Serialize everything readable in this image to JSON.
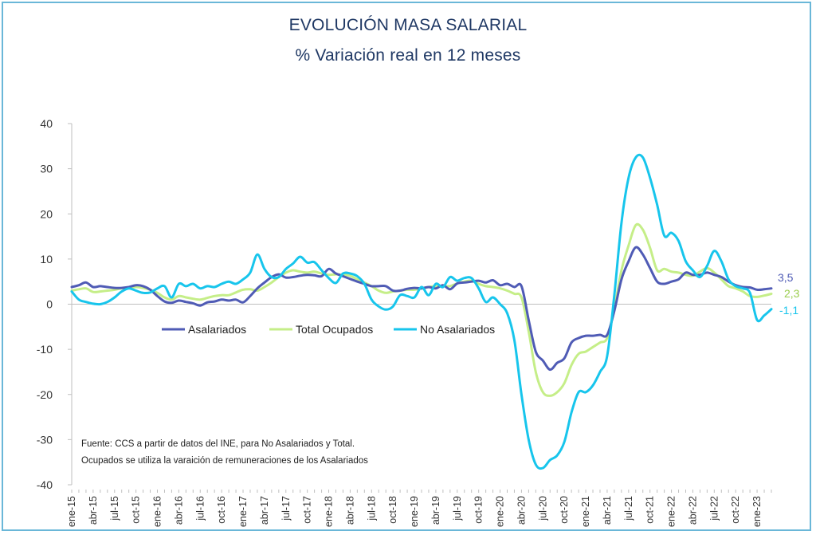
{
  "title": "EVOLUCIÓN MASA SALARIAL",
  "subtitle": "% Variación real en 12 meses",
  "note_lines": [
    "Fuente: CCS a partir de datos del INE, para No Asalariados y Total.",
    "Ocupados se utiliza la varaición de remuneraciones de los Asalariados"
  ],
  "chart_data": {
    "type": "line",
    "title": "EVOLUCIÓN MASA SALARIAL",
    "subtitle": "% Variación real en 12 meses",
    "ylim": [
      -40,
      40
    ],
    "yticks": [
      40,
      30,
      20,
      10,
      0,
      -10,
      -20,
      -30,
      -40
    ],
    "grid": false,
    "legend_position": "inside-upper-left, below zero line",
    "x_ticks": [
      "ene-15",
      "abr-15",
      "jul-15",
      "oct-15",
      "ene-16",
      "abr-16",
      "jul-16",
      "oct-16",
      "ene-17",
      "abr-17",
      "jul-17",
      "oct-17",
      "ene-18",
      "abr-18",
      "jul-18",
      "oct-18",
      "ene-19",
      "abr-19",
      "jul-19",
      "oct-19",
      "ene-20",
      "abr-20",
      "jul-20",
      "oct-20",
      "ene-21",
      "abr-21",
      "jul-21",
      "oct-21",
      "ene-22",
      "abr-22",
      "jul-22",
      "oct-22",
      "ene-23"
    ],
    "end_labels": [
      "3,5",
      "2,3",
      "-1,1"
    ],
    "series": [
      {
        "name": "Asalariados",
        "color": "#4f5bb5",
        "end_label": "3,5",
        "values": [
          [
            0,
            3.8
          ],
          [
            1,
            4.2
          ],
          [
            2,
            4.8
          ],
          [
            3,
            3.8
          ],
          [
            4,
            4.0
          ],
          [
            5,
            3.8
          ],
          [
            6,
            3.6
          ],
          [
            7,
            3.6
          ],
          [
            8,
            3.8
          ],
          [
            9,
            4.2
          ],
          [
            10,
            4.0
          ],
          [
            11,
            3.2
          ],
          [
            12,
            1.8
          ],
          [
            13,
            0.6
          ],
          [
            14,
            0.3
          ],
          [
            15,
            0.8
          ],
          [
            16,
            0.5
          ],
          [
            17,
            0.2
          ],
          [
            18,
            -0.3
          ],
          [
            19,
            0.4
          ],
          [
            20,
            0.6
          ],
          [
            21,
            1.0
          ],
          [
            22,
            0.8
          ],
          [
            23,
            1.0
          ],
          [
            24,
            0.4
          ],
          [
            25,
            1.8
          ],
          [
            26,
            3.5
          ],
          [
            27,
            4.8
          ],
          [
            28,
            6.0
          ],
          [
            29,
            6.6
          ],
          [
            30,
            5.9
          ],
          [
            31,
            6.0
          ],
          [
            32,
            6.3
          ],
          [
            33,
            6.5
          ],
          [
            34,
            6.4
          ],
          [
            35,
            6.2
          ],
          [
            36,
            7.8
          ],
          [
            37,
            6.8
          ],
          [
            38,
            6.2
          ],
          [
            39,
            5.6
          ],
          [
            40,
            5.0
          ],
          [
            41,
            4.5
          ],
          [
            42,
            4.0
          ],
          [
            43,
            4.0
          ],
          [
            44,
            4.0
          ],
          [
            45,
            3.0
          ],
          [
            46,
            3.0
          ],
          [
            47,
            3.4
          ],
          [
            48,
            3.6
          ],
          [
            49,
            3.5
          ],
          [
            50,
            3.8
          ],
          [
            51,
            3.5
          ],
          [
            52,
            4.2
          ],
          [
            53,
            3.3
          ],
          [
            54,
            4.6
          ],
          [
            55,
            4.8
          ],
          [
            56,
            5.0
          ],
          [
            57,
            5.2
          ],
          [
            58,
            4.8
          ],
          [
            59,
            5.3
          ],
          [
            60,
            4.2
          ],
          [
            61,
            4.5
          ],
          [
            62,
            3.8
          ],
          [
            63,
            4.0
          ],
          [
            64,
            -3.5
          ],
          [
            65,
            -10.5
          ],
          [
            66,
            -12.5
          ],
          [
            67,
            -14.5
          ],
          [
            68,
            -13.0
          ],
          [
            69,
            -12.0
          ],
          [
            70,
            -8.5
          ],
          [
            71,
            -7.5
          ],
          [
            72,
            -7.0
          ],
          [
            73,
            -7.0
          ],
          [
            74,
            -6.8
          ],
          [
            75,
            -6.8
          ],
          [
            76,
            -1.5
          ],
          [
            77,
            5.5
          ],
          [
            78,
            9.5
          ],
          [
            79,
            12.6
          ],
          [
            80,
            11.0
          ],
          [
            81,
            8.0
          ],
          [
            82,
            5.0
          ],
          [
            83,
            4.5
          ],
          [
            84,
            5.0
          ],
          [
            85,
            5.5
          ],
          [
            86,
            7.0
          ],
          [
            87,
            6.5
          ],
          [
            88,
            6.5
          ],
          [
            89,
            7.0
          ],
          [
            90,
            6.5
          ],
          [
            91,
            6.0
          ],
          [
            92,
            5.0
          ],
          [
            93,
            4.2
          ],
          [
            94,
            3.8
          ],
          [
            95,
            3.7
          ],
          [
            96,
            3.2
          ],
          [
            97,
            3.3
          ],
          [
            98,
            3.5
          ]
        ]
      },
      {
        "name": "Total Ocupados",
        "color": "#c5ee88",
        "end_label": "2,3",
        "values": [
          [
            0,
            3.0
          ],
          [
            1,
            3.3
          ],
          [
            2,
            3.5
          ],
          [
            3,
            2.7
          ],
          [
            4,
            2.8
          ],
          [
            5,
            3.0
          ],
          [
            6,
            3.2
          ],
          [
            7,
            3.5
          ],
          [
            8,
            3.6
          ],
          [
            9,
            3.8
          ],
          [
            10,
            3.6
          ],
          [
            11,
            3.2
          ],
          [
            12,
            2.5
          ],
          [
            13,
            1.5
          ],
          [
            14,
            1.0
          ],
          [
            15,
            1.8
          ],
          [
            16,
            1.5
          ],
          [
            17,
            1.2
          ],
          [
            18,
            1.0
          ],
          [
            19,
            1.4
          ],
          [
            20,
            1.8
          ],
          [
            21,
            2.0
          ],
          [
            22,
            2.0
          ],
          [
            23,
            2.6
          ],
          [
            24,
            3.2
          ],
          [
            25,
            3.3
          ],
          [
            26,
            3.0
          ],
          [
            27,
            3.8
          ],
          [
            28,
            4.8
          ],
          [
            29,
            6.0
          ],
          [
            30,
            7.0
          ],
          [
            31,
            7.5
          ],
          [
            32,
            7.2
          ],
          [
            33,
            7.0
          ],
          [
            34,
            7.2
          ],
          [
            35,
            6.8
          ],
          [
            36,
            6.5
          ],
          [
            37,
            6.6
          ],
          [
            38,
            6.5
          ],
          [
            39,
            6.3
          ],
          [
            40,
            5.5
          ],
          [
            41,
            4.8
          ],
          [
            42,
            4.0
          ],
          [
            43,
            3.0
          ],
          [
            44,
            2.5
          ],
          [
            45,
            2.8
          ],
          [
            46,
            3.0
          ],
          [
            47,
            3.2
          ],
          [
            48,
            3.2
          ],
          [
            49,
            3.5
          ],
          [
            50,
            3.8
          ],
          [
            51,
            4.0
          ],
          [
            52,
            4.0
          ],
          [
            53,
            4.0
          ],
          [
            54,
            4.6
          ],
          [
            55,
            5.0
          ],
          [
            56,
            5.2
          ],
          [
            57,
            4.5
          ],
          [
            58,
            4.0
          ],
          [
            59,
            3.8
          ],
          [
            60,
            3.5
          ],
          [
            61,
            3.0
          ],
          [
            62,
            2.3
          ],
          [
            63,
            1.5
          ],
          [
            64,
            -6.0
          ],
          [
            65,
            -15.0
          ],
          [
            66,
            -19.5
          ],
          [
            67,
            -20.3
          ],
          [
            68,
            -19.5
          ],
          [
            69,
            -17.5
          ],
          [
            70,
            -13.5
          ],
          [
            71,
            -11.0
          ],
          [
            72,
            -10.5
          ],
          [
            73,
            -9.5
          ],
          [
            74,
            -8.5
          ],
          [
            75,
            -7.5
          ],
          [
            76,
            -1.0
          ],
          [
            77,
            7.5
          ],
          [
            78,
            13.0
          ],
          [
            79,
            17.5
          ],
          [
            80,
            16.5
          ],
          [
            81,
            12.5
          ],
          [
            82,
            7.5
          ],
          [
            83,
            7.8
          ],
          [
            84,
            7.2
          ],
          [
            85,
            7.0
          ],
          [
            86,
            6.5
          ],
          [
            87,
            6.3
          ],
          [
            88,
            7.2
          ],
          [
            89,
            8.0
          ],
          [
            90,
            7.0
          ],
          [
            91,
            5.5
          ],
          [
            92,
            4.0
          ],
          [
            93,
            3.5
          ],
          [
            94,
            2.8
          ],
          [
            95,
            1.8
          ],
          [
            96,
            1.6
          ],
          [
            97,
            1.9
          ],
          [
            98,
            2.3
          ]
        ]
      },
      {
        "name": "No Asalariados",
        "color": "#17c5ec",
        "end_label": "-1,1",
        "values": [
          [
            0,
            2.8
          ],
          [
            1,
            1.0
          ],
          [
            2,
            0.5
          ],
          [
            3,
            0.1
          ],
          [
            4,
            0.0
          ],
          [
            5,
            0.5
          ],
          [
            6,
            1.5
          ],
          [
            7,
            2.8
          ],
          [
            8,
            3.5
          ],
          [
            9,
            3.0
          ],
          [
            10,
            2.5
          ],
          [
            11,
            2.6
          ],
          [
            12,
            3.5
          ],
          [
            13,
            4.0
          ],
          [
            14,
            1.5
          ],
          [
            15,
            4.5
          ],
          [
            16,
            4.0
          ],
          [
            17,
            4.5
          ],
          [
            18,
            3.5
          ],
          [
            19,
            4.0
          ],
          [
            20,
            3.8
          ],
          [
            21,
            4.5
          ],
          [
            22,
            5.0
          ],
          [
            23,
            4.5
          ],
          [
            24,
            5.5
          ],
          [
            25,
            7.0
          ],
          [
            26,
            11.0
          ],
          [
            27,
            7.8
          ],
          [
            28,
            6.0
          ],
          [
            29,
            6.0
          ],
          [
            30,
            7.8
          ],
          [
            31,
            9.0
          ],
          [
            32,
            10.5
          ],
          [
            33,
            9.2
          ],
          [
            34,
            9.3
          ],
          [
            35,
            7.5
          ],
          [
            36,
            5.8
          ],
          [
            37,
            4.7
          ],
          [
            38,
            6.8
          ],
          [
            39,
            6.8
          ],
          [
            40,
            6.2
          ],
          [
            41,
            4.5
          ],
          [
            42,
            1.0
          ],
          [
            43,
            -0.5
          ],
          [
            44,
            -1.2
          ],
          [
            45,
            -0.5
          ],
          [
            46,
            2.0
          ],
          [
            47,
            1.8
          ],
          [
            48,
            1.5
          ],
          [
            49,
            3.8
          ],
          [
            50,
            2.0
          ],
          [
            51,
            4.5
          ],
          [
            52,
            3.8
          ],
          [
            53,
            6.0
          ],
          [
            54,
            5.2
          ],
          [
            55,
            5.8
          ],
          [
            56,
            5.8
          ],
          [
            57,
            3.5
          ],
          [
            58,
            0.5
          ],
          [
            59,
            1.5
          ],
          [
            60,
            0.0
          ],
          [
            61,
            -2.0
          ],
          [
            62,
            -8.0
          ],
          [
            63,
            -20.0
          ],
          [
            64,
            -30.0
          ],
          [
            65,
            -35.5
          ],
          [
            66,
            -36.3
          ],
          [
            67,
            -34.5
          ],
          [
            68,
            -33.5
          ],
          [
            69,
            -30.5
          ],
          [
            70,
            -24.0
          ],
          [
            71,
            -19.5
          ],
          [
            72,
            -19.5
          ],
          [
            73,
            -18.0
          ],
          [
            74,
            -15.0
          ],
          [
            75,
            -11.5
          ],
          [
            76,
            2.0
          ],
          [
            77,
            18.0
          ],
          [
            78,
            28.0
          ],
          [
            79,
            32.5
          ],
          [
            80,
            32.5
          ],
          [
            81,
            28.0
          ],
          [
            82,
            22.0
          ],
          [
            83,
            15.2
          ],
          [
            84,
            15.8
          ],
          [
            85,
            14.0
          ],
          [
            86,
            9.5
          ],
          [
            87,
            7.5
          ],
          [
            88,
            6.0
          ],
          [
            89,
            8.5
          ],
          [
            90,
            11.8
          ],
          [
            91,
            9.5
          ],
          [
            92,
            5.5
          ],
          [
            93,
            4.0
          ],
          [
            94,
            3.5
          ],
          [
            95,
            2.5
          ],
          [
            96,
            -3.5
          ],
          [
            97,
            -2.5
          ],
          [
            98,
            -1.1
          ]
        ]
      }
    ]
  }
}
